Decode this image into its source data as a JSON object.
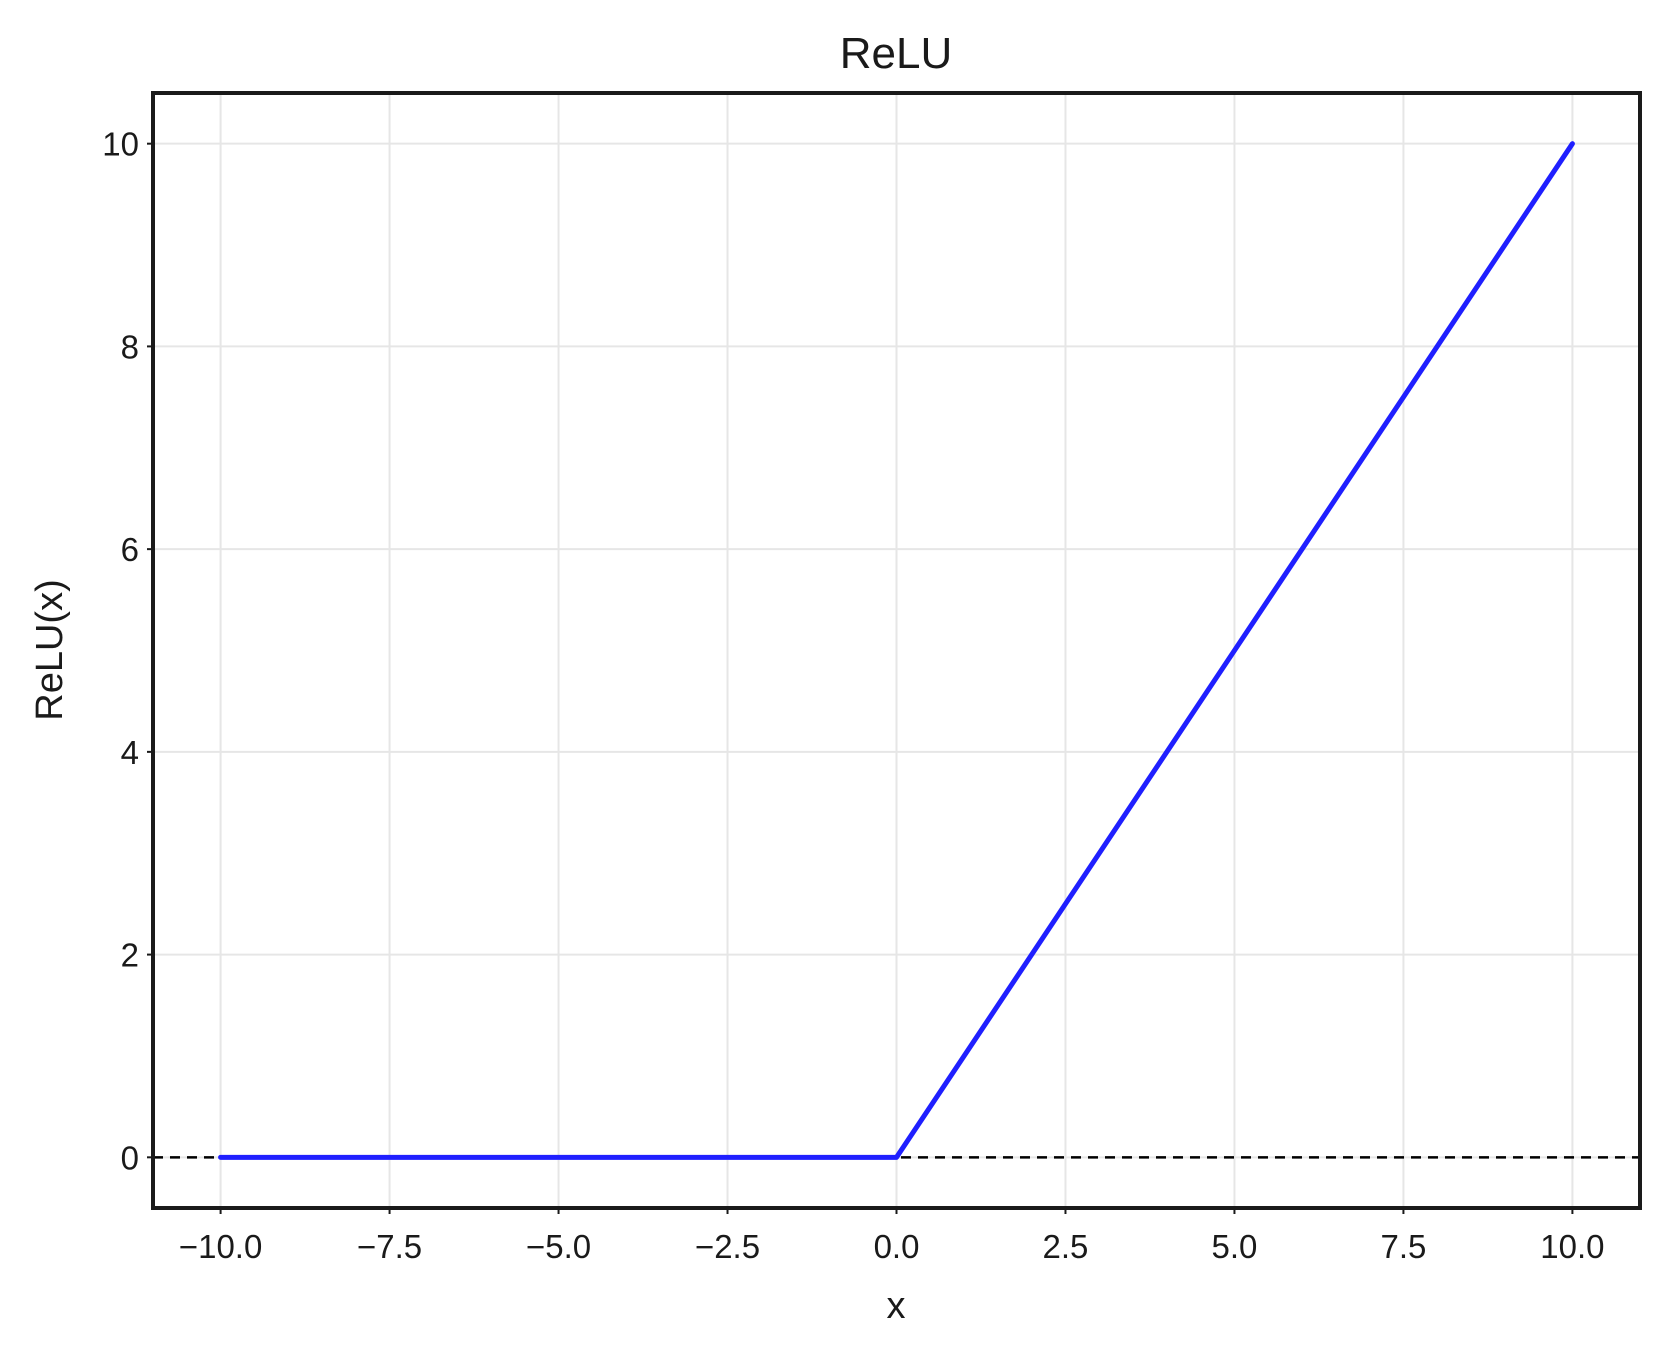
{
  "chart_data": {
    "type": "line",
    "title": "ReLU",
    "xlabel": "x",
    "ylabel": "ReLU(x)",
    "xlim": [
      -11.0,
      11.0
    ],
    "ylim": [
      -0.5,
      10.5
    ],
    "x_ticks": [
      -10.0,
      -7.5,
      -5.0,
      -2.5,
      0.0,
      2.5,
      5.0,
      7.5,
      10.0
    ],
    "x_tick_labels": [
      "−10.0",
      "−7.5",
      "−5.0",
      "−2.5",
      "0.0",
      "2.5",
      "5.0",
      "7.5",
      "10.0"
    ],
    "y_ticks": [
      0,
      2,
      4,
      6,
      8,
      10
    ],
    "y_tick_labels": [
      "0",
      "2",
      "4",
      "6",
      "8",
      "10"
    ],
    "grid": true,
    "series": [
      {
        "color": "#1f1fff",
        "x": [
          -10.0,
          -7.5,
          -5.0,
          -2.5,
          0.0,
          2.5,
          5.0,
          7.5,
          10.0
        ],
        "y": [
          0,
          0,
          0,
          0,
          0,
          2.5,
          5.0,
          7.5,
          10.0
        ]
      }
    ],
    "reference_lines": [
      {
        "orientation": "horizontal",
        "y": 0,
        "style": "dashed",
        "color": "#000000"
      }
    ]
  }
}
